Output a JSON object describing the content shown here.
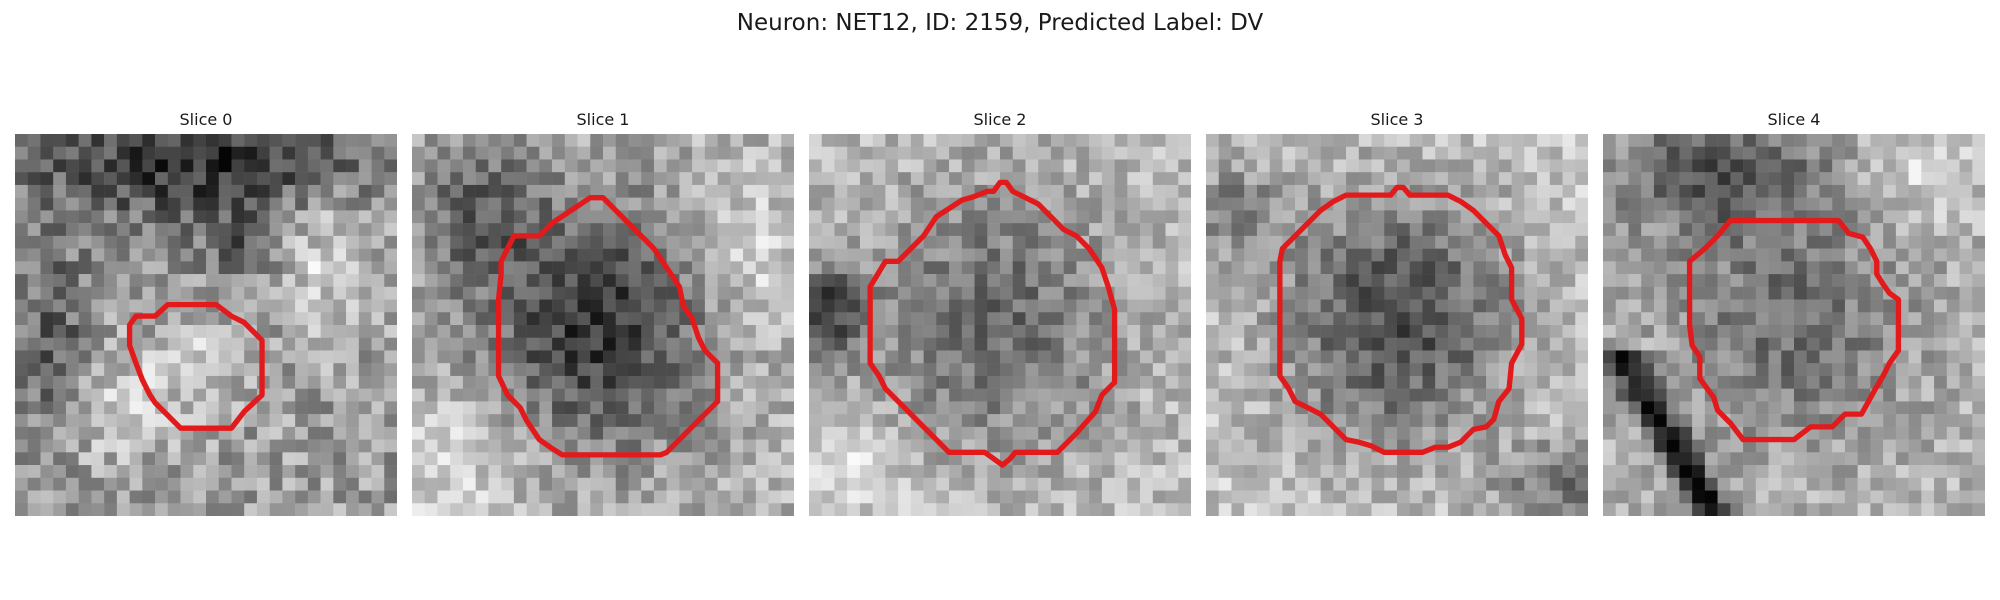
{
  "figure": {
    "title": "Neuron: NET12, ID: 2159, Predicted Label: DV"
  },
  "panels": [
    {
      "title": "Slice 0",
      "contour_color": "#e31a1c"
    },
    {
      "title": "Slice 1",
      "contour_color": "#e31a1c"
    },
    {
      "title": "Slice 2",
      "contour_color": "#e31a1c"
    },
    {
      "title": "Slice 3",
      "contour_color": "#e31a1c"
    },
    {
      "title": "Slice 4",
      "contour_color": "#e31a1c"
    }
  ],
  "colormap": "gray"
}
